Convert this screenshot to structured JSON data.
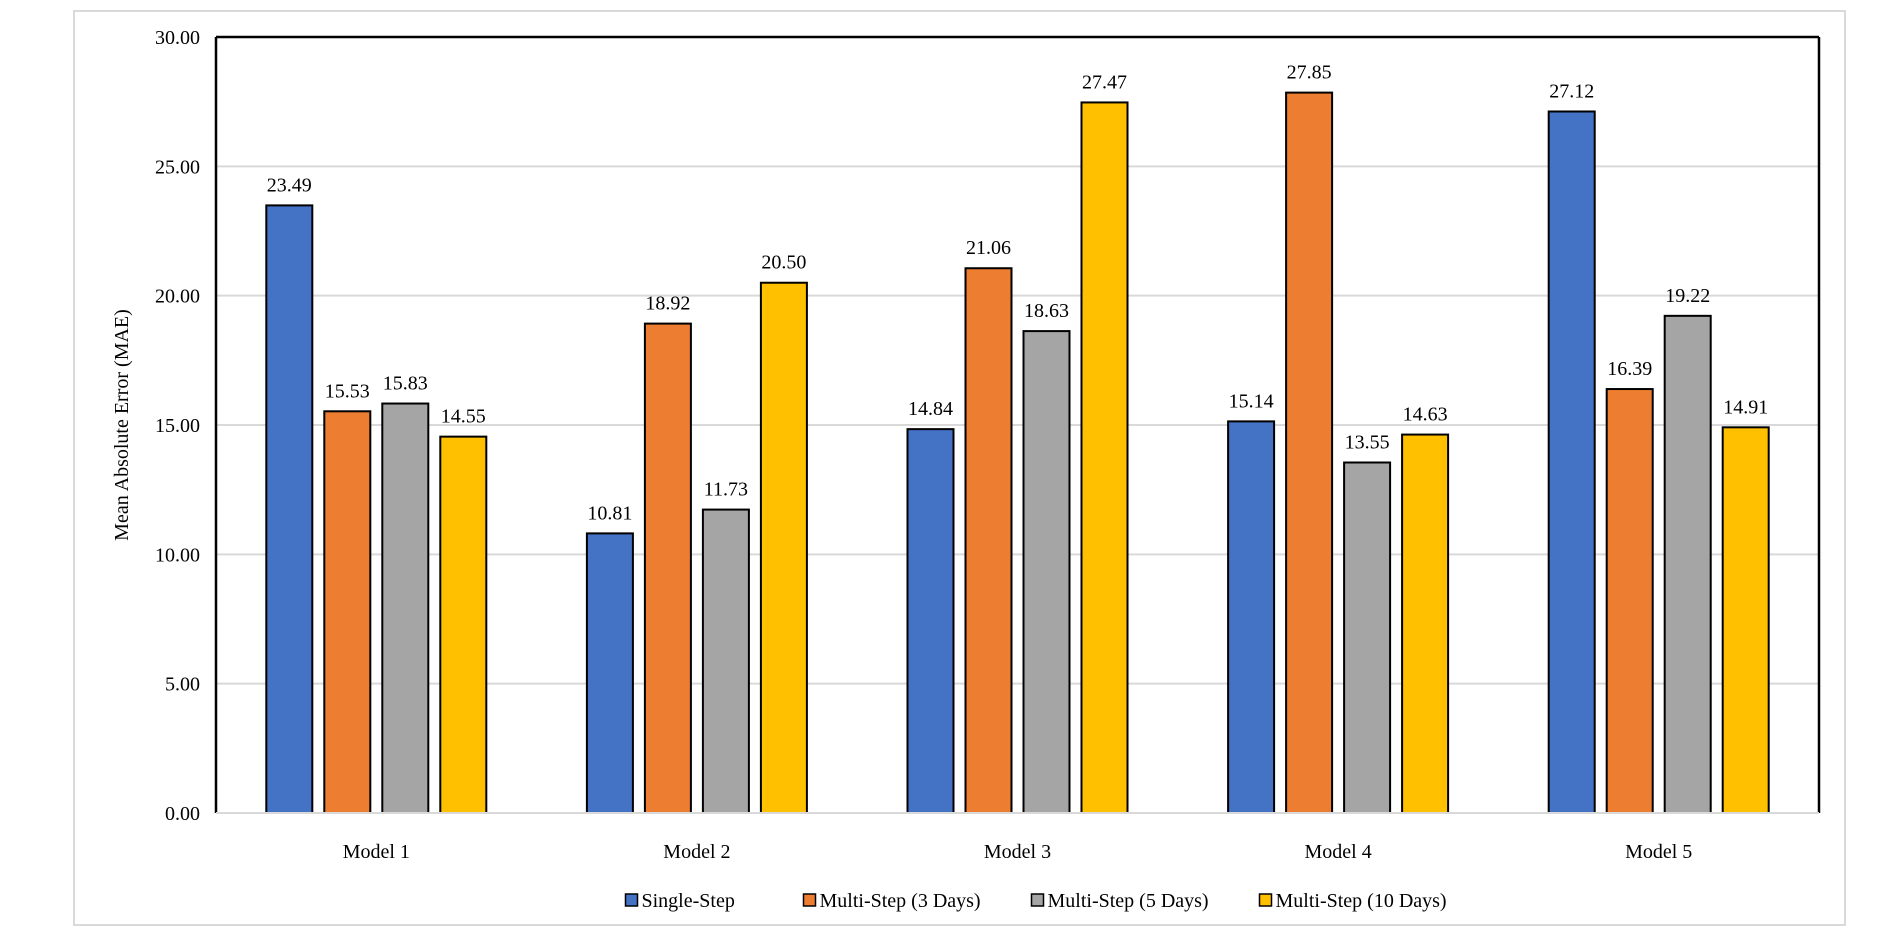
{
  "chart_data": {
    "type": "bar",
    "title": "",
    "xlabel": "",
    "ylabel": "Mean Absolute Error (MAE)",
    "ylim": [
      0,
      30
    ],
    "yticks": [
      "0.00",
      "5.00",
      "10.00",
      "15.00",
      "20.00",
      "25.00",
      "30.00"
    ],
    "grid": true,
    "legend_position": "bottom",
    "categories": [
      "Model 1",
      "Model 2",
      "Model 3",
      "Model 4",
      "Model 5"
    ],
    "series": [
      {
        "name": "Single-Step",
        "color": "#4472C4",
        "values": [
          23.49,
          10.81,
          14.84,
          15.14,
          27.12
        ],
        "labels": [
          "23.49",
          "10.81",
          "14.84",
          "15.14",
          "27.12"
        ]
      },
      {
        "name": "Multi-Step (3 Days)",
        "color": "#ED7D31",
        "values": [
          15.53,
          18.92,
          21.06,
          27.85,
          16.39
        ],
        "labels": [
          "15.53",
          "18.92",
          "21.06",
          "27.85",
          "16.39"
        ]
      },
      {
        "name": "Multi-Step (5 Days)",
        "color": "#A5A5A5",
        "values": [
          15.83,
          11.73,
          18.63,
          13.55,
          19.22
        ],
        "labels": [
          "15.83",
          "11.73",
          "18.63",
          "13.55",
          "19.22"
        ]
      },
      {
        "name": "Multi-Step (10 Days)",
        "color": "#FFC000",
        "values": [
          14.55,
          20.5,
          27.47,
          14.63,
          14.91
        ],
        "labels": [
          "14.55",
          "20.50",
          "27.47",
          "14.63",
          "14.91"
        ]
      }
    ]
  }
}
